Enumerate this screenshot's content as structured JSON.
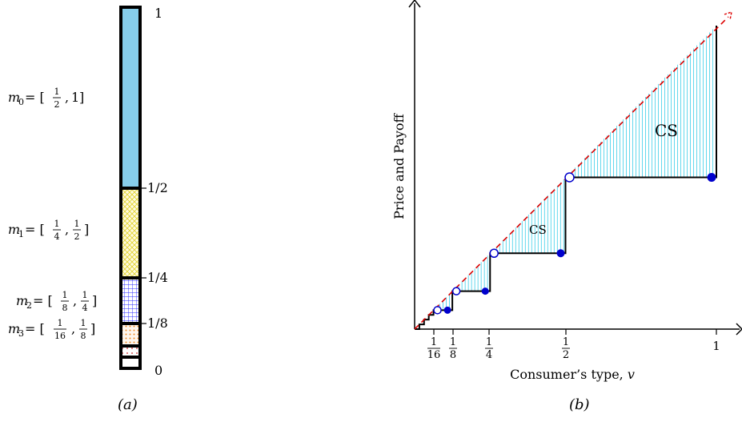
{
  "panel_a": {
    "caption": "(a)",
    "segments": [
      {
        "name": "m0",
        "label_main": "m",
        "label_sub": "0",
        "label_prefix": " = [",
        "lo_num": "1",
        "lo_den": "2",
        "hi": "1",
        "label_suffix": "]",
        "color": "#87ceeb",
        "pattern": "solid"
      },
      {
        "name": "m1",
        "label_main": "m",
        "label_sub": "1",
        "label_prefix": " = [",
        "lo_num": "1",
        "lo_den": "4",
        "hi_num": "1",
        "hi_den": "2",
        "label_suffix": "]",
        "color": "#fff27a",
        "pattern": "crosshatch"
      },
      {
        "name": "m2",
        "label_main": "m",
        "label_sub": "2",
        "label_prefix": " = [",
        "lo_num": "1",
        "lo_den": "8",
        "hi_num": "1",
        "hi_den": "4",
        "label_suffix": "]",
        "color": "#2a2aff",
        "pattern": "grid"
      },
      {
        "name": "m3",
        "label_main": "m",
        "label_sub": "3",
        "label_prefix": " = [",
        "lo_num": "1",
        "lo_den": "16",
        "hi_num": "1",
        "hi_den": "8",
        "label_suffix": "]",
        "color": "#f08a24",
        "pattern": "dots"
      }
    ],
    "ticks": [
      "1",
      "1/2",
      "1/4",
      "1/8",
      "0"
    ]
  },
  "panel_b": {
    "caption": "(b)",
    "y_axis_label": "Price and Payoff",
    "x_axis_label_text": "Consumer’s type, ",
    "x_axis_label_var": "v",
    "x_ticks": [
      {
        "num": "1",
        "den": "16"
      },
      {
        "num": "1",
        "den": "8"
      },
      {
        "num": "1",
        "den": "4"
      },
      {
        "num": "1",
        "den": "2"
      },
      {
        "value": "1"
      }
    ],
    "cs_labels": [
      "CS",
      "CS"
    ],
    "colors": {
      "diagonal": "#dd0000",
      "price": "#000000",
      "hatch": "#22c8e6",
      "dots": "#0000cc"
    }
  },
  "chart_data": {
    "type": "line",
    "x_range": [
      0,
      1
    ],
    "y_range": [
      0,
      1
    ],
    "series": [
      {
        "values": [
          [
            0,
            0
          ],
          [
            1,
            1
          ]
        ]
      },
      {
        "steps": [
          {
            "x_from": 0.5,
            "x_to": 1.0,
            "y": 0.5
          },
          {
            "x_from": 0.25,
            "x_to": 0.5,
            "y": 0.25
          },
          {
            "x_from": 0.125,
            "x_to": 0.25,
            "y": 0.125
          },
          {
            "x_from": 0.0625,
            "x_to": 0.125,
            "y": 0.0625
          }
        ]
      }
    ]
  }
}
